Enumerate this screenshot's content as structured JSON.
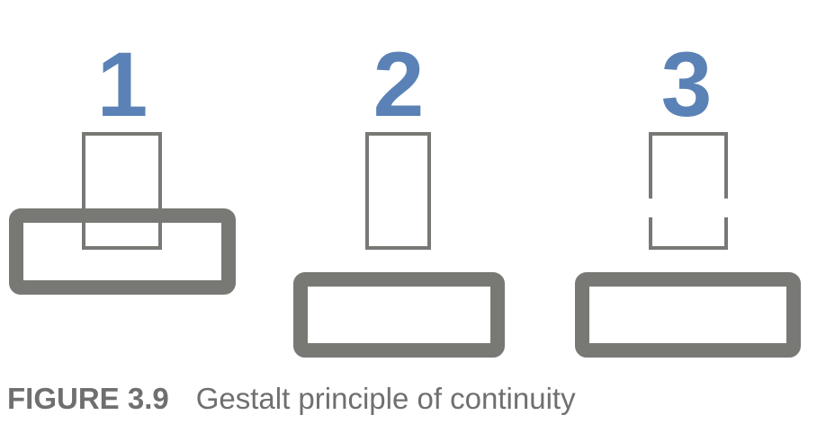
{
  "numbers": [
    "1",
    "2",
    "3"
  ],
  "caption": {
    "label": "FIGURE 3.9",
    "text": "Gestalt principle of continuity"
  },
  "colors": {
    "number": "#5b82b6",
    "shape": "#787875",
    "caption": "#6f6f6f"
  }
}
